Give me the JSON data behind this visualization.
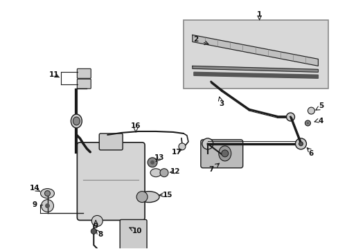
{
  "bg_color": "#ffffff",
  "fig_width": 4.89,
  "fig_height": 3.6,
  "dpi": 100,
  "line_color": "#1a1a1a",
  "label_fontsize": 7.5,
  "label_color": "#111111",
  "box_color": "#d8d8d8",
  "box_edge": "#888888",
  "part_color": "#cccccc",
  "dark_part": "#555555"
}
